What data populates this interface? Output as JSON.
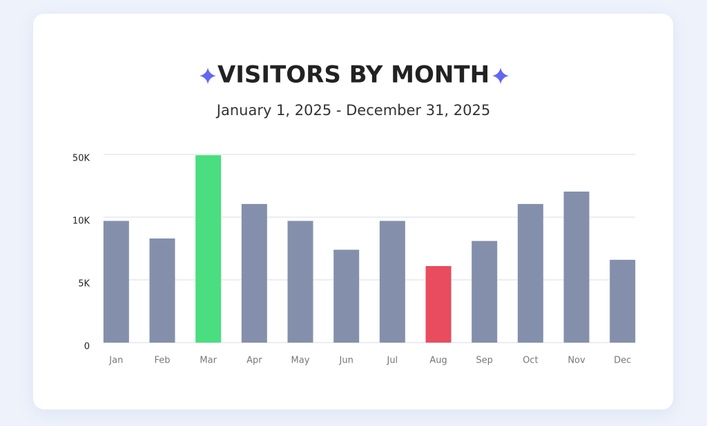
{
  "chart_data": {
    "type": "bar",
    "title": "VISITORS BY MONTH",
    "subtitle": "January 1, 2025 - December 31, 2025",
    "categories": [
      "Jan",
      "Feb",
      "Mar",
      "Apr",
      "May",
      "Jun",
      "Jul",
      "Aug",
      "Sep",
      "Oct",
      "Nov",
      "Dec"
    ],
    "values": [
      9700,
      8300,
      49500,
      18400,
      9700,
      7400,
      9700,
      6100,
      8100,
      18400,
      26300,
      6600
    ],
    "colors": [
      "#8490ab",
      "#8490ab",
      "#4ade80",
      "#8490ab",
      "#8490ab",
      "#8490ab",
      "#8490ab",
      "#e84c5e",
      "#8490ab",
      "#8490ab",
      "#8490ab",
      "#8490ab"
    ],
    "ylim": [
      0,
      50000
    ],
    "yticks": [
      {
        "value": 0,
        "label": "0"
      },
      {
        "value": 5000,
        "label": "5K"
      },
      {
        "value": 10000,
        "label": "10K"
      },
      {
        "value": 50000,
        "label": "50K"
      }
    ],
    "grid": true
  }
}
